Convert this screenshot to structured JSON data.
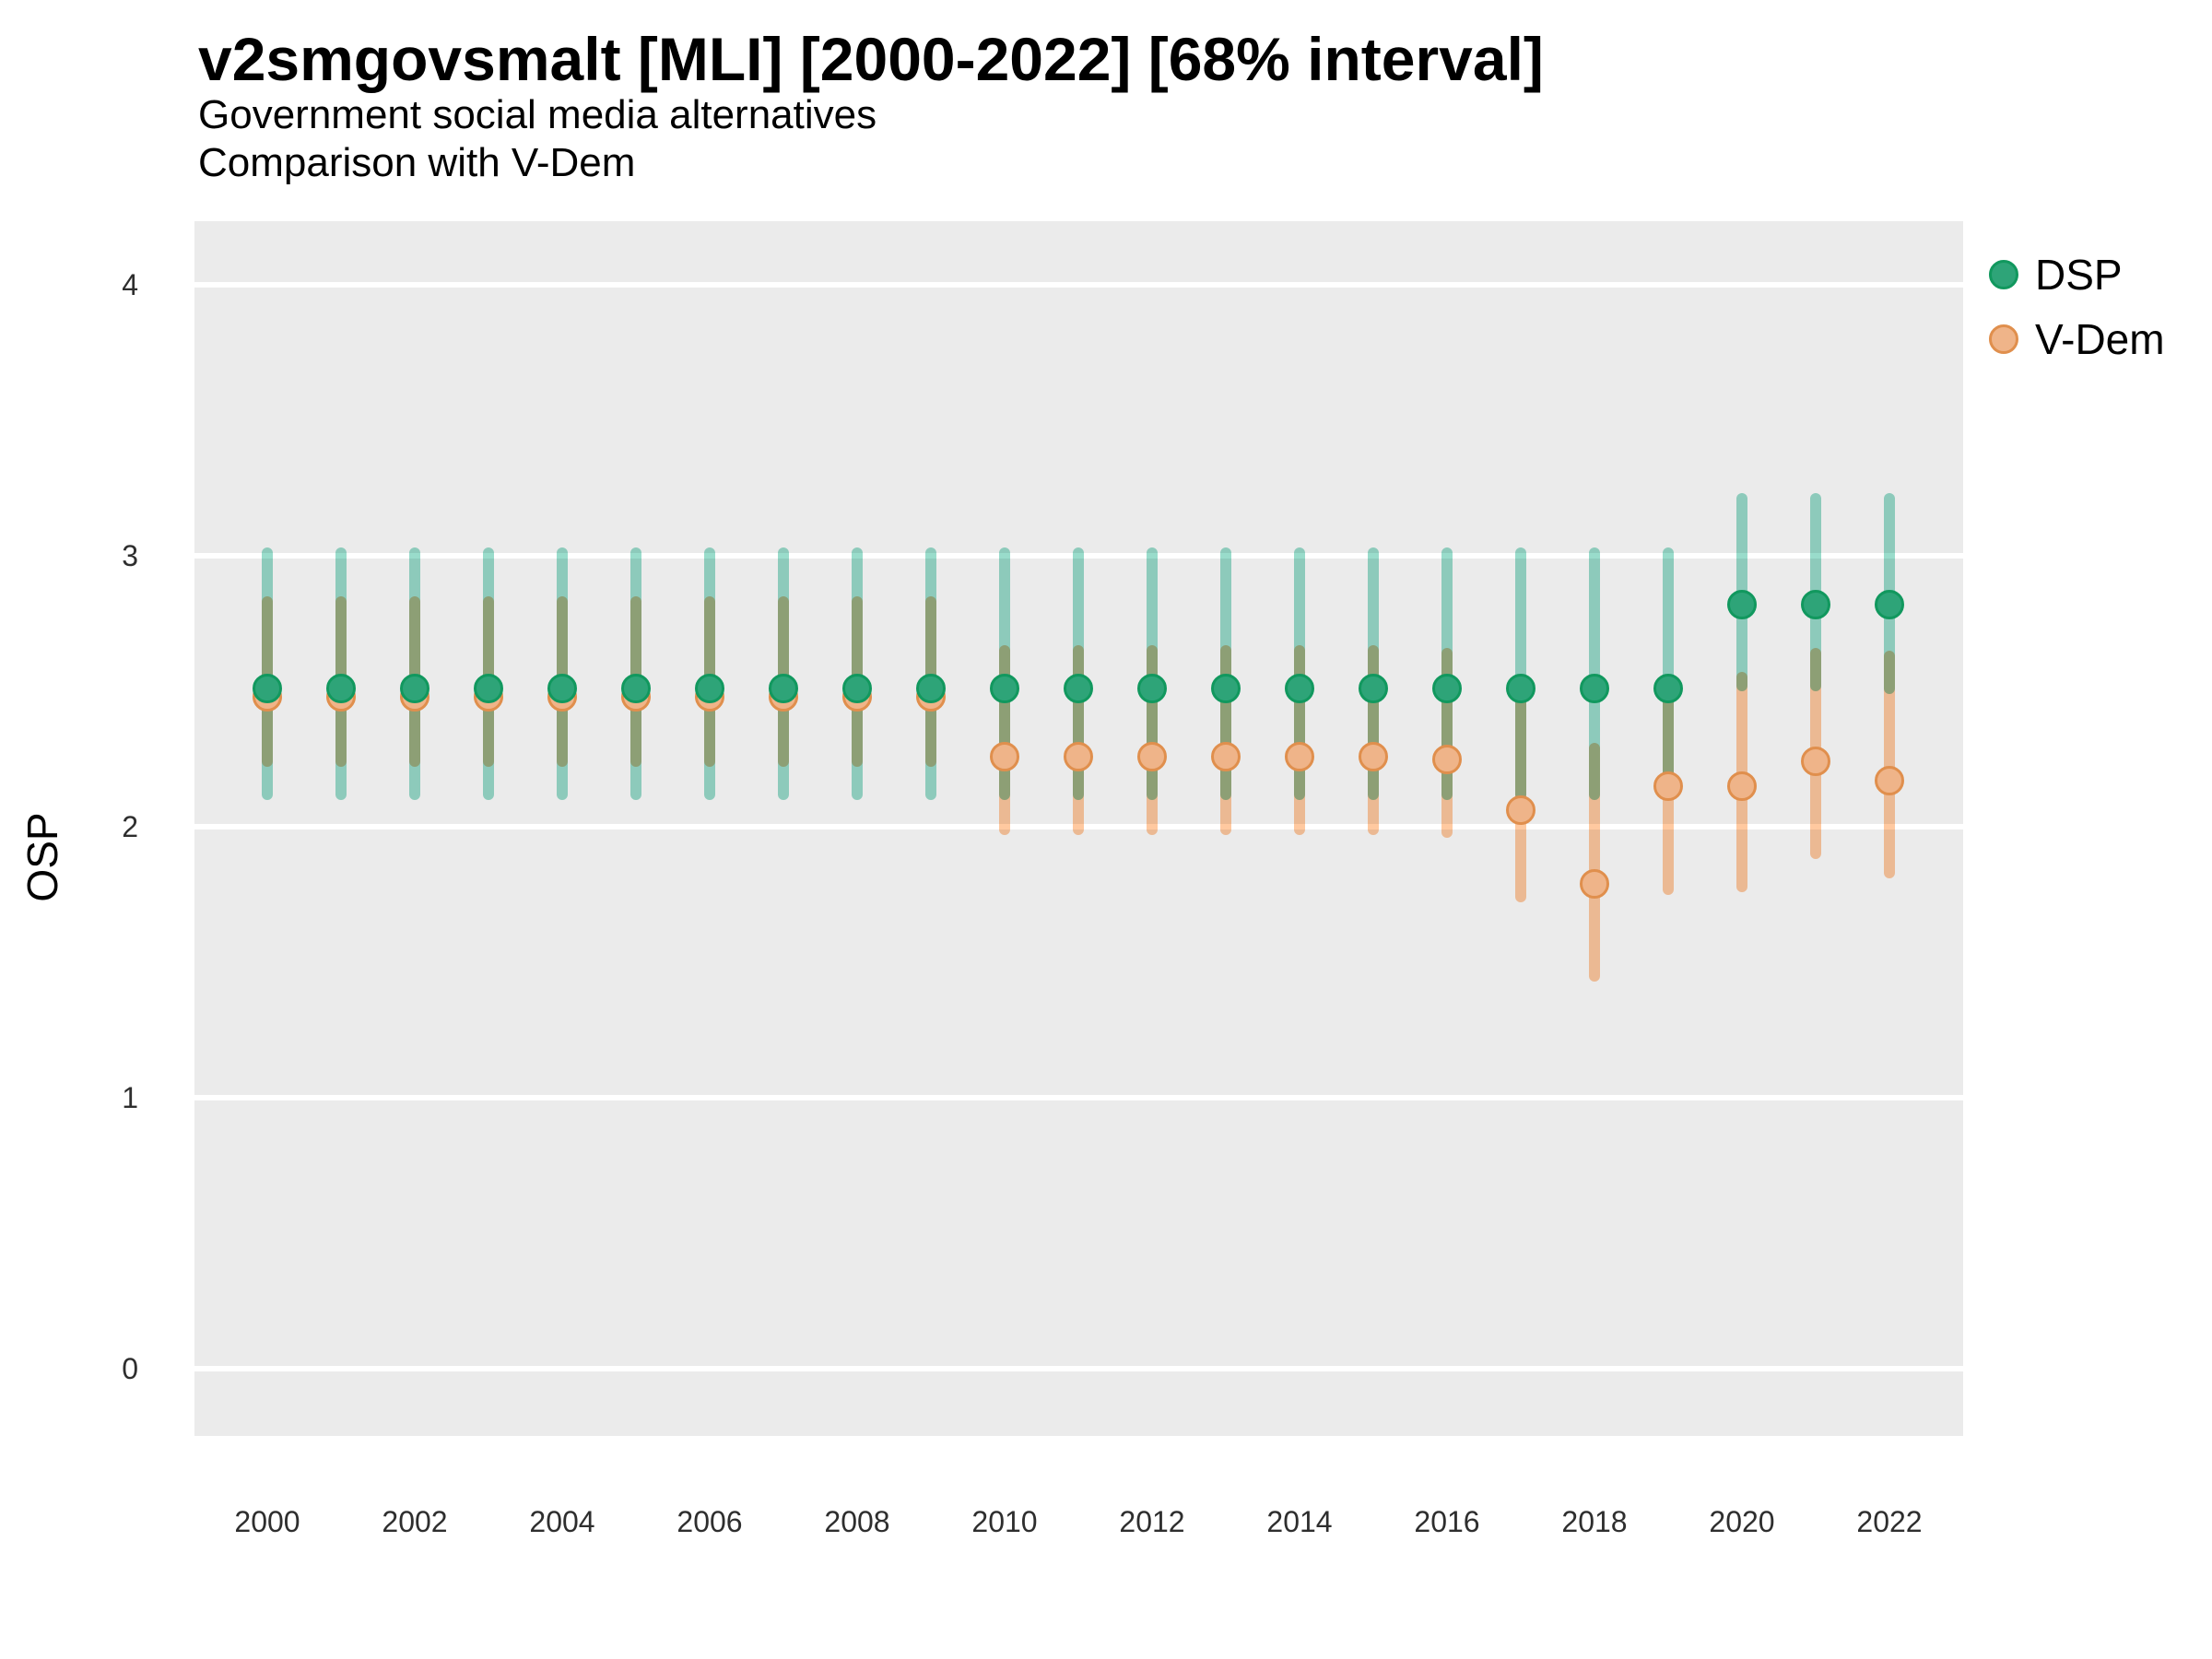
{
  "title": "v2smgovsmalt [MLI] [2000-2022] [68% interval]",
  "subtitle1": "Government social media alternatives",
  "subtitle2": "Comparison with V-Dem",
  "legend": [
    {
      "label": "DSP"
    },
    {
      "label": "V-Dem"
    }
  ],
  "colors": {
    "page_background": "#FFFFFF",
    "panel_background": "#EBEBEB",
    "gridline": "#FFFFFF",
    "dsp_point_fill": "#2EA478",
    "dsp_point_stroke": "#11985E",
    "dsp_interval": "#99DCCB",
    "vdem_point_fill": "#EFB489",
    "vdem_point_stroke": "#E08F4D",
    "vdem_interval": "#FFC9A0",
    "interval_overlap_appearance": "#6F9B72",
    "text": "#000000",
    "tick_text": "#2E2E2E"
  },
  "chart_data": {
    "type": "pointrange",
    "title": "v2smgovsmalt [MLI] [2000-2022] [68% interval]",
    "subtitle": [
      "Government social media alternatives",
      "Comparison with V-Dem"
    ],
    "xlabel": "",
    "ylabel": "OSP",
    "x": [
      2000,
      2001,
      2002,
      2003,
      2004,
      2005,
      2006,
      2007,
      2008,
      2009,
      2010,
      2011,
      2012,
      2013,
      2014,
      2015,
      2016,
      2017,
      2018,
      2019,
      2020,
      2021,
      2022
    ],
    "x_tick_labels": [
      "2000",
      "2002",
      "2004",
      "2006",
      "2008",
      "2010",
      "2012",
      "2014",
      "2016",
      "2018",
      "2020",
      "2022"
    ],
    "x_tick_years": [
      2000,
      2002,
      2004,
      2006,
      2008,
      2010,
      2012,
      2014,
      2016,
      2018,
      2020,
      2022
    ],
    "y_ticks": [
      0,
      1,
      2,
      3,
      4
    ],
    "y_tick_labels": [
      "0",
      "1",
      "2",
      "3",
      "4"
    ],
    "ylim": [
      -0.27,
      4.24
    ],
    "grid": "major horizontal, white on gray panel",
    "legend_position": "right-top",
    "interval_level": "68%",
    "series": [
      {
        "name": "DSP",
        "point_fill": "#2EA478",
        "point_stroke": "#11985E",
        "bar_color": "#99DCCB",
        "values": [
          2.51,
          2.51,
          2.51,
          2.51,
          2.51,
          2.51,
          2.51,
          2.51,
          2.51,
          2.51,
          2.51,
          2.51,
          2.51,
          2.51,
          2.51,
          2.51,
          2.51,
          2.51,
          2.51,
          2.51,
          2.82,
          2.82,
          2.82
        ],
        "lo": [
          2.1,
          2.1,
          2.1,
          2.1,
          2.1,
          2.1,
          2.1,
          2.1,
          2.1,
          2.1,
          2.1,
          2.1,
          2.1,
          2.1,
          2.1,
          2.1,
          2.1,
          2.1,
          2.1,
          2.1,
          2.5,
          2.5,
          2.49
        ],
        "hi": [
          3.03,
          3.03,
          3.03,
          3.03,
          3.03,
          3.03,
          3.03,
          3.03,
          3.03,
          3.03,
          3.03,
          3.03,
          3.03,
          3.03,
          3.03,
          3.03,
          3.03,
          3.03,
          3.03,
          3.03,
          3.23,
          3.23,
          3.23
        ]
      },
      {
        "name": "V-Dem",
        "point_fill": "#EFB489",
        "point_stroke": "#E08F4D",
        "bar_color": "#FFC9A0",
        "values": [
          2.48,
          2.48,
          2.48,
          2.48,
          2.48,
          2.48,
          2.48,
          2.48,
          2.48,
          2.48,
          2.26,
          2.26,
          2.26,
          2.26,
          2.26,
          2.26,
          2.25,
          2.06,
          1.79,
          2.15,
          2.15,
          2.24,
          2.17
        ],
        "lo": [
          2.22,
          2.22,
          2.22,
          2.22,
          2.22,
          2.22,
          2.22,
          2.22,
          2.22,
          2.22,
          1.97,
          1.97,
          1.97,
          1.97,
          1.97,
          1.97,
          1.96,
          1.72,
          1.43,
          1.75,
          1.76,
          1.88,
          1.81
        ],
        "hi": [
          2.85,
          2.85,
          2.85,
          2.85,
          2.85,
          2.85,
          2.85,
          2.85,
          2.85,
          2.85,
          2.67,
          2.67,
          2.67,
          2.67,
          2.67,
          2.67,
          2.66,
          2.52,
          2.31,
          2.5,
          2.57,
          2.66,
          2.65
        ]
      }
    ]
  }
}
